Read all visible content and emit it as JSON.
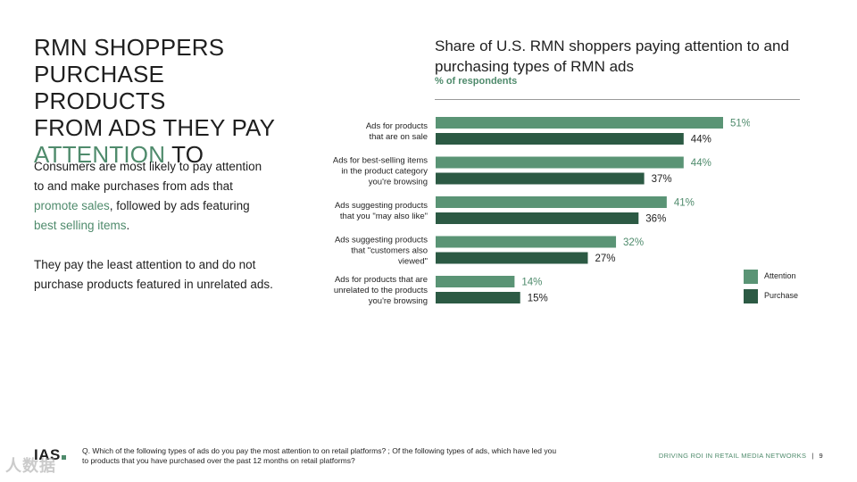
{
  "headline": {
    "line1": "RMN SHOPPERS",
    "line2": "PURCHASE PRODUCTS",
    "line3": "FROM ADS THEY PAY",
    "accent": "ATTENTION",
    "tail": " TO"
  },
  "paragraph1": {
    "pre": "Consumers are most likely to pay attention to and make purchases from ads that ",
    "hl1": "promote sales",
    "mid": ", followed by ads featuring ",
    "hl2": "best selling items",
    "post": "."
  },
  "paragraph2": "They pay the least attention to and do not purchase products featured in unrelated ads.",
  "chart_title": "Share of U.S. RMN shoppers paying attention to and purchasing types of RMN ads",
  "chart_subtitle": "% of respondents",
  "colors": {
    "attention": "#5a9475",
    "purchase": "#2c5a44",
    "accent": "#4f8b6c"
  },
  "chart_data": {
    "type": "bar",
    "orientation": "horizontal",
    "categories": [
      [
        "Ads for products",
        "that are on sale"
      ],
      [
        "Ads for best-selling items",
        "in the product category",
        "you're browsing"
      ],
      [
        "Ads suggesting products",
        "that you \"may also like\""
      ],
      [
        "Ads suggesting products",
        "that \"customers also",
        "viewed\""
      ],
      [
        "Ads for products that are",
        "unrelated to the products",
        "you're browsing"
      ]
    ],
    "series": [
      {
        "name": "Attention",
        "values": [
          51,
          44,
          41,
          32,
          14
        ]
      },
      {
        "name": "Purchase",
        "values": [
          44,
          37,
          36,
          27,
          15
        ]
      }
    ],
    "value_suffix": "%",
    "xlim": [
      0,
      51
    ],
    "legend_position": "right"
  },
  "footer": {
    "logo": "IAS",
    "note": "Q. Which of the following types of ads do you pay the most attention to on retail platforms? ; Of the following types of ads, which have led you to products that you have purchased over the past 12 months on retail platforms?",
    "section": "DRIVING ROI IN RETAIL MEDIA NETWORKS",
    "separator": "|",
    "page": "9"
  },
  "watermark": "人数据"
}
